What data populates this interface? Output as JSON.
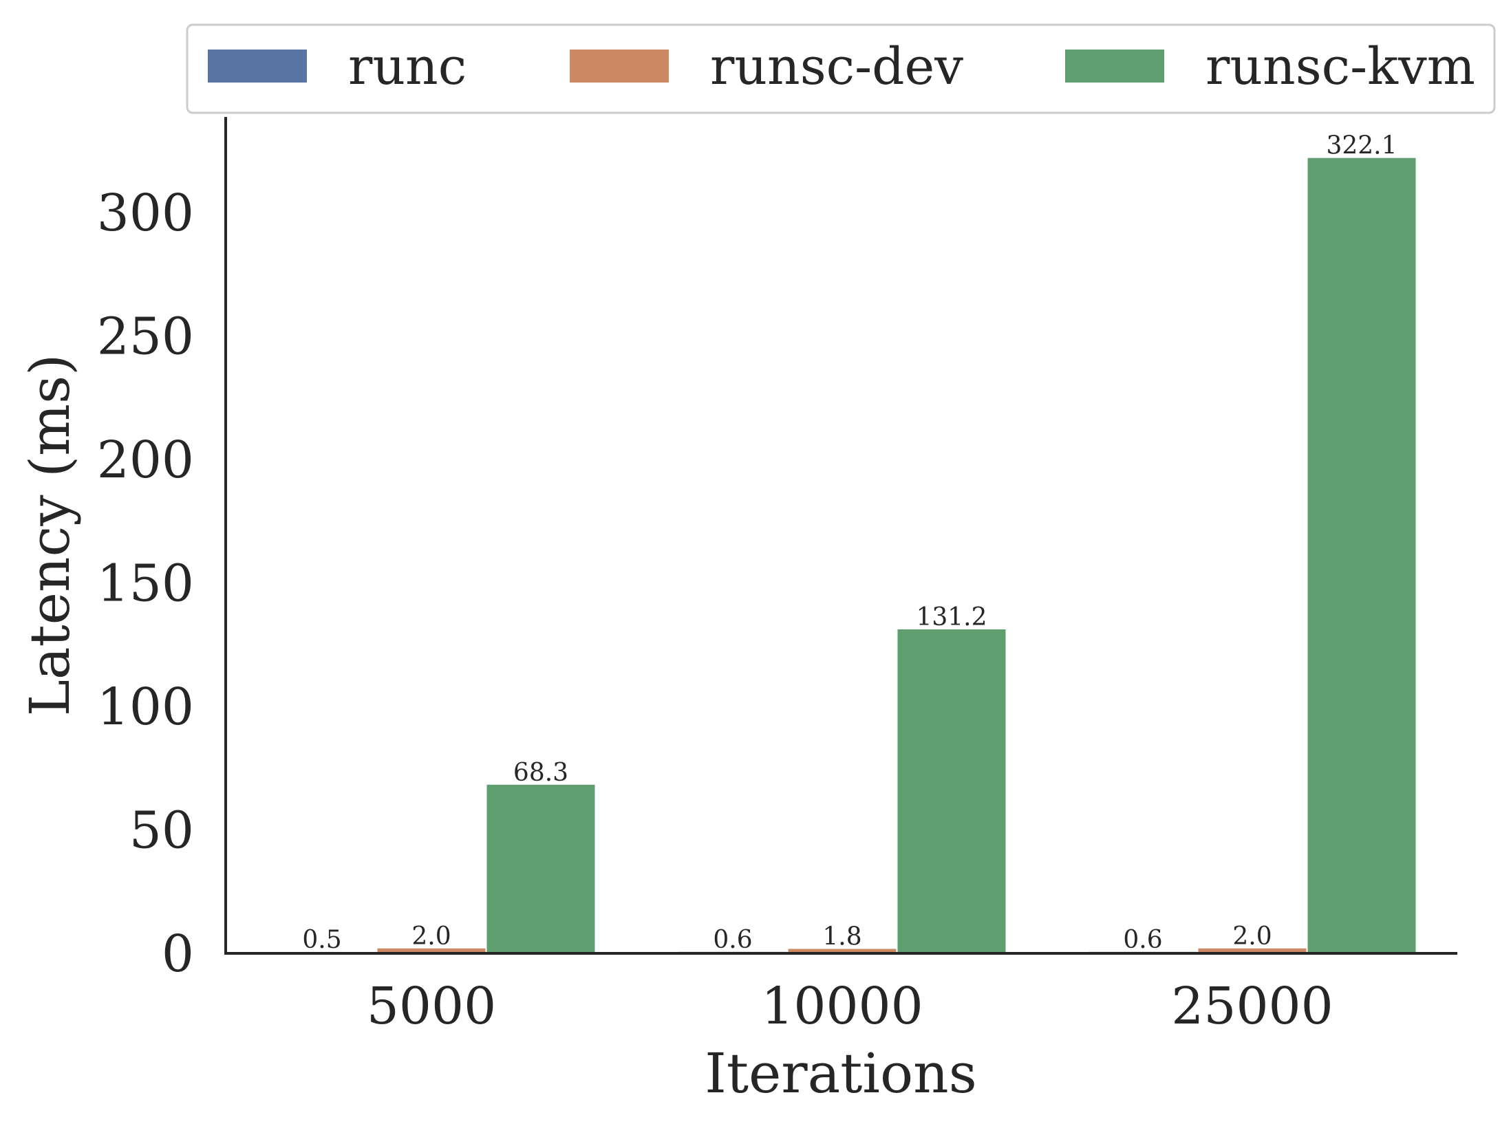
{
  "chart_data": {
    "type": "bar",
    "xlabel": "Iterations",
    "ylabel": "Latency (ms)",
    "categories": [
      "5000",
      "10000",
      "25000"
    ],
    "series": [
      {
        "name": "runc",
        "color": "#5975a4",
        "values": [
          0.5,
          0.6,
          0.6
        ],
        "labels": [
          "0.5",
          "0.6",
          "0.6"
        ]
      },
      {
        "name": "runsc-dev",
        "color": "#cc8963",
        "values": [
          2.0,
          1.8,
          2.0
        ],
        "labels": [
          "2.0",
          "1.8",
          "2.0"
        ]
      },
      {
        "name": "runsc-kvm",
        "color": "#5f9e6e",
        "values": [
          68.3,
          131.2,
          322.1
        ],
        "labels": [
          "68.3",
          "131.2",
          "322.1"
        ]
      }
    ],
    "yticks": [
      "0",
      "50",
      "100",
      "150",
      "200",
      "250",
      "300"
    ],
    "ylim": [
      0,
      335
    ],
    "grid": false,
    "legend_position": "top"
  }
}
